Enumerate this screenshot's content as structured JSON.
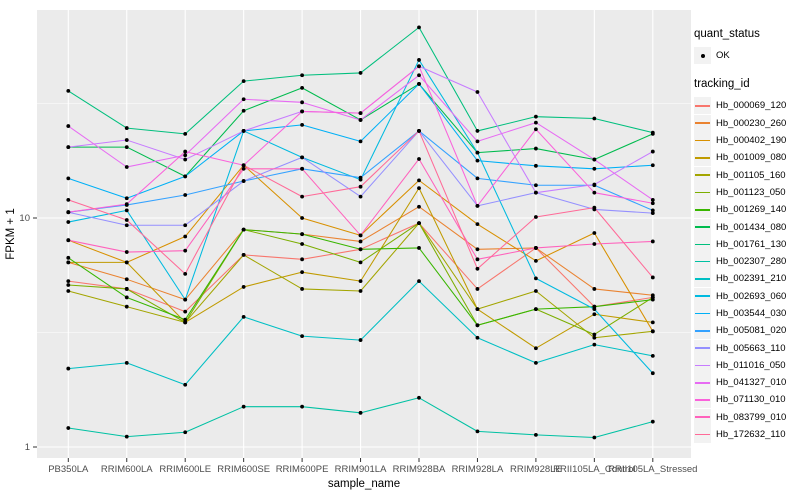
{
  "figure": {
    "legend": {
      "quant_status_title": "quant_status",
      "quant_status_items": [
        "OK"
      ],
      "tracking_id_title": "tracking_id"
    }
  },
  "chart_data": {
    "type": "line",
    "title": "",
    "xlabel": "sample_name",
    "ylabel": "FPKM + 1",
    "y_scale": "log10",
    "ylim": [
      0.9,
      81
    ],
    "y_major_ticks": [
      1,
      10
    ],
    "y_minor_gridlines": [
      3.162,
      31.62
    ],
    "grid": true,
    "legend_position": "right",
    "panel_background": "#EBEBEB",
    "grid_color": "#FFFFFF",
    "point_color": "#000000",
    "tick_label_color": "#4D4D4D",
    "x_categories": [
      "PB350LA",
      "RRIM600LA",
      "RRIM600LE",
      "RRIM600SE",
      "RRIM600PE",
      "RRIM901LA",
      "RRIM928BA",
      "RRIM928LA",
      "RRIM928LE",
      "RRII105LA_Control",
      "RRII105LA_Stressed"
    ],
    "quant_status": "OK",
    "series": [
      {
        "name": "Hb_000069_120",
        "color": "#F8766D",
        "values": [
          5.3,
          4.9,
          3.9,
          6.9,
          6.6,
          7.3,
          9.5,
          4.9,
          7.4,
          4.1,
          4.5
        ]
      },
      {
        "name": "Hb_000230_260",
        "color": "#EA8331",
        "values": [
          6.4,
          5.4,
          4.4,
          8.9,
          8.5,
          7.9,
          11.2,
          7.3,
          7.4,
          4.9,
          4.6
        ]
      },
      {
        "name": "Hb_000402_190",
        "color": "#D89000",
        "values": [
          8.0,
          6.4,
          8.3,
          17.0,
          10.0,
          8.4,
          14.6,
          9.4,
          6.5,
          8.6,
          3.2
        ]
      },
      {
        "name": "Hb_001009_080",
        "color": "#C09B00",
        "values": [
          6.4,
          6.4,
          3.5,
          5.0,
          5.8,
          5.3,
          13.5,
          4.0,
          2.7,
          3.8,
          3.5
        ]
      },
      {
        "name": "Hb_001105_160",
        "color": "#A3A500",
        "values": [
          4.8,
          4.1,
          3.5,
          6.9,
          4.9,
          4.8,
          9.5,
          4.0,
          4.8,
          3.0,
          3.2
        ]
      },
      {
        "name": "Hb_001123_050",
        "color": "#7CAE00",
        "values": [
          5.1,
          4.9,
          3.5,
          8.9,
          7.7,
          6.4,
          9.5,
          3.4,
          4.0,
          3.1,
          4.5
        ]
      },
      {
        "name": "Hb_001269_140",
        "color": "#39B600",
        "values": [
          6.7,
          4.5,
          3.6,
          8.9,
          8.5,
          7.3,
          7.4,
          3.4,
          4.0,
          4.1,
          4.4
        ]
      },
      {
        "name": "Hb_001434_080",
        "color": "#00BB4E",
        "values": [
          20.4,
          20.4,
          15.2,
          29.4,
          37.0,
          26.8,
          38.5,
          19.3,
          20.1,
          18.0,
          23.3
        ]
      },
      {
        "name": "Hb_001761_130",
        "color": "#00BF7D",
        "values": [
          35.9,
          24.7,
          23.3,
          39.6,
          42.0,
          43.0,
          68.0,
          24.0,
          27.7,
          27.2,
          23.6
        ]
      },
      {
        "name": "Hb_002307_280",
        "color": "#00C1A3",
        "values": [
          1.21,
          1.11,
          1.16,
          1.5,
          1.5,
          1.41,
          1.64,
          1.17,
          1.13,
          1.1,
          1.29
        ]
      },
      {
        "name": "Hb_002391_210",
        "color": "#00BFC4",
        "values": [
          2.2,
          2.33,
          1.87,
          3.7,
          3.05,
          2.93,
          5.3,
          3.0,
          2.33,
          2.8,
          2.5
        ]
      },
      {
        "name": "Hb_002693_060",
        "color": "#00BAE0",
        "values": [
          9.6,
          10.8,
          4.4,
          24.0,
          18.4,
          14.7,
          49.0,
          19.3,
          5.45,
          4.0,
          2.1
        ]
      },
      {
        "name": "Hb_003544_030",
        "color": "#00B0F6",
        "values": [
          14.9,
          12.2,
          15.2,
          24.0,
          25.5,
          21.6,
          38.5,
          17.8,
          16.9,
          16.4,
          17.0
        ]
      },
      {
        "name": "Hb_005081_020",
        "color": "#35A2FF",
        "values": [
          10.6,
          11.4,
          12.6,
          14.5,
          16.4,
          15.0,
          24.0,
          14.9,
          13.9,
          13.9,
          10.8
        ]
      },
      {
        "name": "Hb_005663_110",
        "color": "#9590FF",
        "values": [
          10.6,
          9.3,
          9.3,
          14.5,
          18.4,
          12.4,
          24.0,
          11.3,
          12.9,
          10.9,
          10.5
        ]
      },
      {
        "name": "Hb_011016_050",
        "color": "#C77CFF",
        "values": [
          20.4,
          21.9,
          18.0,
          24.0,
          29.2,
          28.7,
          46.0,
          35.5,
          12.9,
          14.0,
          19.5
        ]
      },
      {
        "name": "Hb_041327_010",
        "color": "#E76BF3",
        "values": [
          25.2,
          16.7,
          18.8,
          33.0,
          32.0,
          26.8,
          42.0,
          21.6,
          26.1,
          18.0,
          12.0
        ]
      },
      {
        "name": "Hb_071130_010",
        "color": "#FA62DB",
        "values": [
          10.6,
          11.5,
          19.5,
          17.0,
          29.2,
          28.7,
          46.0,
          11.3,
          24.4,
          12.9,
          11.6
        ]
      },
      {
        "name": "Hb_083799_010",
        "color": "#FF62BC",
        "values": [
          8.0,
          7.1,
          7.2,
          16.4,
          16.4,
          8.4,
          18.1,
          6.6,
          7.4,
          7.7,
          7.9
        ]
      },
      {
        "name": "Hb_172632_110",
        "color": "#FF6A98",
        "values": [
          12.0,
          9.8,
          5.7,
          17.0,
          12.4,
          13.7,
          24.0,
          6.0,
          10.1,
          11.1,
          5.5
        ]
      }
    ]
  }
}
